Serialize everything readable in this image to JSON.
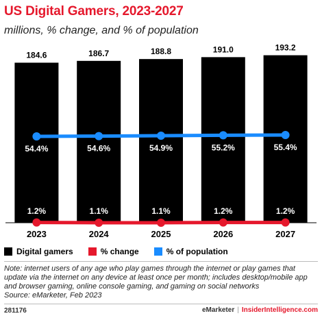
{
  "header": {
    "title": "US Digital Gamers, 2023-2027",
    "subtitle": "millions, % change, and % of population"
  },
  "chart_data": {
    "type": "bar",
    "categories": [
      "2023",
      "2024",
      "2025",
      "2026",
      "2027"
    ],
    "series": [
      {
        "name": "Digital gamers",
        "kind": "bar",
        "color": "#000000",
        "values": [
          184.6,
          186.7,
          188.8,
          191.0,
          193.2
        ],
        "labels": [
          "184.6",
          "186.7",
          "188.8",
          "191.0",
          "193.2"
        ]
      },
      {
        "name": "% change",
        "kind": "line",
        "color": "#e5182c",
        "values": [
          1.2,
          1.1,
          1.1,
          1.2,
          1.2
        ],
        "labels": [
          "1.2%",
          "1.1%",
          "1.1%",
          "1.2%",
          "1.2%"
        ]
      },
      {
        "name": "% of population",
        "kind": "line",
        "color": "#1a8cff",
        "values": [
          54.4,
          54.6,
          54.9,
          55.2,
          55.4
        ],
        "labels": [
          "54.4%",
          "54.6%",
          "54.9%",
          "55.2%",
          "55.4%"
        ]
      }
    ],
    "grid": false,
    "legend_position": "bottom-left"
  },
  "legend": [
    {
      "label": "Digital gamers",
      "color": "#000000"
    },
    {
      "label": "% change",
      "color": "#e5182c"
    },
    {
      "label": "% of population",
      "color": "#1a8cff"
    }
  ],
  "note": "Note: internet users of any age who play games through the internet or play games that update via the internet on any device at least once per month; includes desktop/mobile app and browser gaming, online console gaming, and gaming on social networks",
  "source": "Source: eMarketer, Feb 2023",
  "footer": {
    "chart_id": "281176",
    "brand": "eMarketer",
    "separator": "|",
    "site": "InsiderIntelligence.com"
  }
}
